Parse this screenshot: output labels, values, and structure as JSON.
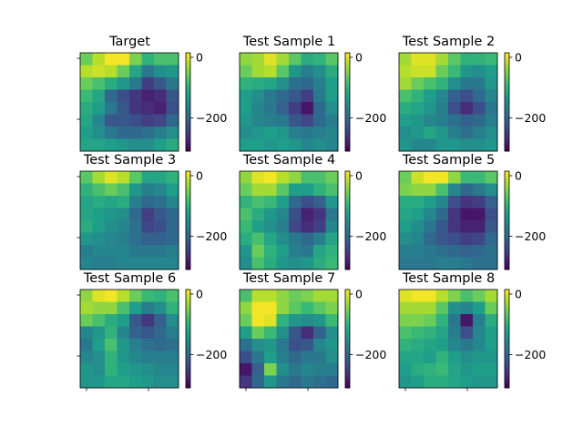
{
  "chart_data": {
    "type": "heatmap",
    "layout": "3x3 grid of heatmaps, each with its own vertical colorbar",
    "colormap": "viridis",
    "color_range": [
      -310,
      15
    ],
    "colorbar_ticks": [
      0,
      -200
    ],
    "grid": false,
    "panels": [
      {
        "title": "Target",
        "values": [
          [
            -60,
            -20,
            10,
            10,
            -50,
            -100,
            -80,
            -80
          ],
          [
            -20,
            -10,
            -20,
            -60,
            -120,
            -180,
            -150,
            -140
          ],
          [
            -60,
            -80,
            -110,
            -140,
            -180,
            -250,
            -220,
            -180
          ],
          [
            -90,
            -120,
            -200,
            -230,
            -260,
            -280,
            -270,
            -220
          ],
          [
            -110,
            -130,
            -180,
            -220,
            -260,
            -270,
            -280,
            -230
          ],
          [
            -120,
            -160,
            -220,
            -220,
            -230,
            -250,
            -240,
            -200
          ],
          [
            -130,
            -150,
            -180,
            -200,
            -200,
            -190,
            -170,
            -150
          ],
          [
            -120,
            -120,
            -130,
            -140,
            -150,
            -150,
            -130,
            -110
          ]
        ]
      },
      {
        "title": "Test Sample 1",
        "values": [
          [
            -40,
            -30,
            0,
            -30,
            -70,
            -110,
            -100,
            -70
          ],
          [
            -60,
            -30,
            -20,
            -70,
            -140,
            -170,
            -150,
            -110
          ],
          [
            -100,
            -110,
            -120,
            -150,
            -190,
            -200,
            -170,
            -130
          ],
          [
            -130,
            -150,
            -180,
            -200,
            -220,
            -250,
            -180,
            -130
          ],
          [
            -130,
            -160,
            -180,
            -210,
            -250,
            -290,
            -200,
            -150
          ],
          [
            -140,
            -160,
            -170,
            -180,
            -220,
            -240,
            -200,
            -170
          ],
          [
            -150,
            -140,
            -130,
            -140,
            -170,
            -180,
            -170,
            -160
          ],
          [
            -130,
            -130,
            -140,
            -130,
            -140,
            -160,
            -150,
            -160
          ]
        ]
      },
      {
        "title": "Test Sample 2",
        "values": [
          [
            -30,
            0,
            0,
            -30,
            -70,
            -100,
            -100,
            -90
          ],
          [
            -20,
            -10,
            -10,
            -60,
            -90,
            -140,
            -150,
            -130
          ],
          [
            -30,
            -60,
            -80,
            -100,
            -150,
            -180,
            -180,
            -140
          ],
          [
            -80,
            -100,
            -130,
            -160,
            -210,
            -230,
            -200,
            -160
          ],
          [
            -110,
            -120,
            -140,
            -170,
            -230,
            -270,
            -230,
            -180
          ],
          [
            -130,
            -140,
            -160,
            -170,
            -190,
            -210,
            -200,
            -170
          ],
          [
            -150,
            -140,
            -120,
            -140,
            -170,
            -190,
            -170,
            -150
          ],
          [
            -140,
            -160,
            -160,
            -140,
            -140,
            -150,
            -150,
            -140
          ]
        ]
      },
      {
        "title": "Test Sample 3",
        "values": [
          [
            -70,
            -30,
            0,
            -20,
            -70,
            -120,
            -120,
            -100
          ],
          [
            -100,
            -80,
            -60,
            -80,
            -140,
            -170,
            -160,
            -130
          ],
          [
            -120,
            -110,
            -120,
            -110,
            -170,
            -200,
            -190,
            -160
          ],
          [
            -120,
            -130,
            -140,
            -150,
            -200,
            -250,
            -220,
            -200
          ],
          [
            -110,
            -130,
            -150,
            -160,
            -190,
            -240,
            -230,
            -200
          ],
          [
            -140,
            -150,
            -160,
            -170,
            -190,
            -210,
            -210,
            -200
          ],
          [
            -170,
            -160,
            -160,
            -160,
            -180,
            -180,
            -180,
            -170
          ],
          [
            -160,
            -170,
            -170,
            -160,
            -160,
            -160,
            -160,
            -160
          ]
        ]
      },
      {
        "title": "Test Sample 4",
        "values": [
          [
            -40,
            0,
            10,
            -20,
            -40,
            -80,
            -80,
            -60
          ],
          [
            -60,
            -30,
            -30,
            -70,
            -130,
            -130,
            -100,
            -80
          ],
          [
            -100,
            -80,
            -90,
            -130,
            -200,
            -230,
            -210,
            -140
          ],
          [
            -80,
            -110,
            -140,
            -160,
            -230,
            -280,
            -260,
            -180
          ],
          [
            -90,
            -130,
            -150,
            -170,
            -240,
            -270,
            -250,
            -160
          ],
          [
            -110,
            -80,
            -120,
            -150,
            -180,
            -200,
            -170,
            -120
          ],
          [
            -140,
            -60,
            -100,
            -130,
            -170,
            -180,
            -120,
            -100
          ],
          [
            -150,
            -80,
            -110,
            -140,
            -150,
            -140,
            -110,
            -90
          ]
        ]
      },
      {
        "title": "Test Sample 5",
        "values": [
          [
            -60,
            -10,
            10,
            10,
            -40,
            -90,
            -90,
            -70
          ],
          [
            -50,
            -40,
            -40,
            -80,
            -160,
            -200,
            -180,
            -150
          ],
          [
            -110,
            -110,
            -130,
            -160,
            -230,
            -260,
            -250,
            -210
          ],
          [
            -120,
            -130,
            -160,
            -200,
            -260,
            -290,
            -290,
            -230
          ],
          [
            -130,
            -150,
            -180,
            -220,
            -260,
            -280,
            -280,
            -220
          ],
          [
            -150,
            -160,
            -200,
            -220,
            -230,
            -250,
            -240,
            -200
          ],
          [
            -170,
            -170,
            -180,
            -190,
            -200,
            -210,
            -200,
            -190
          ],
          [
            -180,
            -180,
            -180,
            -170,
            -170,
            -180,
            -190,
            -190
          ]
        ]
      },
      {
        "title": "Test Sample 6",
        "values": [
          [
            -40,
            0,
            10,
            -20,
            -60,
            -90,
            -100,
            -80
          ],
          [
            -30,
            -40,
            -40,
            -80,
            -130,
            -170,
            -150,
            -100
          ],
          [
            -60,
            -80,
            -110,
            -130,
            -220,
            -260,
            -210,
            -150
          ],
          [
            -160,
            -140,
            -100,
            -160,
            -210,
            -220,
            -200,
            -170
          ],
          [
            -180,
            -130,
            -80,
            -140,
            -170,
            -190,
            -200,
            -190
          ],
          [
            -160,
            -150,
            -100,
            -140,
            -160,
            -170,
            -170,
            -170
          ],
          [
            -140,
            -150,
            -100,
            -130,
            -140,
            -150,
            -160,
            -160
          ],
          [
            -140,
            -140,
            -120,
            -120,
            -130,
            -140,
            -150,
            -150
          ]
        ]
      },
      {
        "title": "Test Sample 7",
        "values": [
          [
            -80,
            -20,
            -20,
            -40,
            -60,
            -50,
            -30,
            -30
          ],
          [
            -40,
            10,
            10,
            -40,
            -70,
            -90,
            -70,
            -50
          ],
          [
            -60,
            10,
            0,
            -100,
            -140,
            -150,
            -140,
            -90
          ],
          [
            -130,
            -60,
            -90,
            -150,
            -220,
            -270,
            -210,
            -150
          ],
          [
            -190,
            -150,
            -140,
            -180,
            -230,
            -220,
            -160,
            -140
          ],
          [
            -230,
            -180,
            -130,
            -170,
            -200,
            -180,
            -180,
            -150
          ],
          [
            -290,
            -210,
            -50,
            -150,
            -180,
            -160,
            -170,
            -170
          ],
          [
            -260,
            -200,
            -140,
            -180,
            -200,
            -180,
            -190,
            -200
          ]
        ]
      },
      {
        "title": "Test Sample 8",
        "values": [
          [
            0,
            10,
            10,
            -20,
            -50,
            -80,
            -60,
            -30
          ],
          [
            -30,
            -30,
            -30,
            -70,
            -150,
            -160,
            -130,
            -60
          ],
          [
            -50,
            -50,
            -60,
            -100,
            -180,
            -290,
            -170,
            -110
          ],
          [
            -80,
            -90,
            -100,
            -120,
            -170,
            -230,
            -160,
            -130
          ],
          [
            -100,
            -110,
            -120,
            -130,
            -160,
            -180,
            -160,
            -130
          ],
          [
            -120,
            -120,
            -130,
            -100,
            -130,
            -150,
            -140,
            -140
          ],
          [
            -130,
            -110,
            -100,
            -90,
            -120,
            -140,
            -130,
            -130
          ],
          [
            -140,
            -130,
            -110,
            -110,
            -120,
            -130,
            -140,
            -140
          ]
        ]
      }
    ]
  }
}
